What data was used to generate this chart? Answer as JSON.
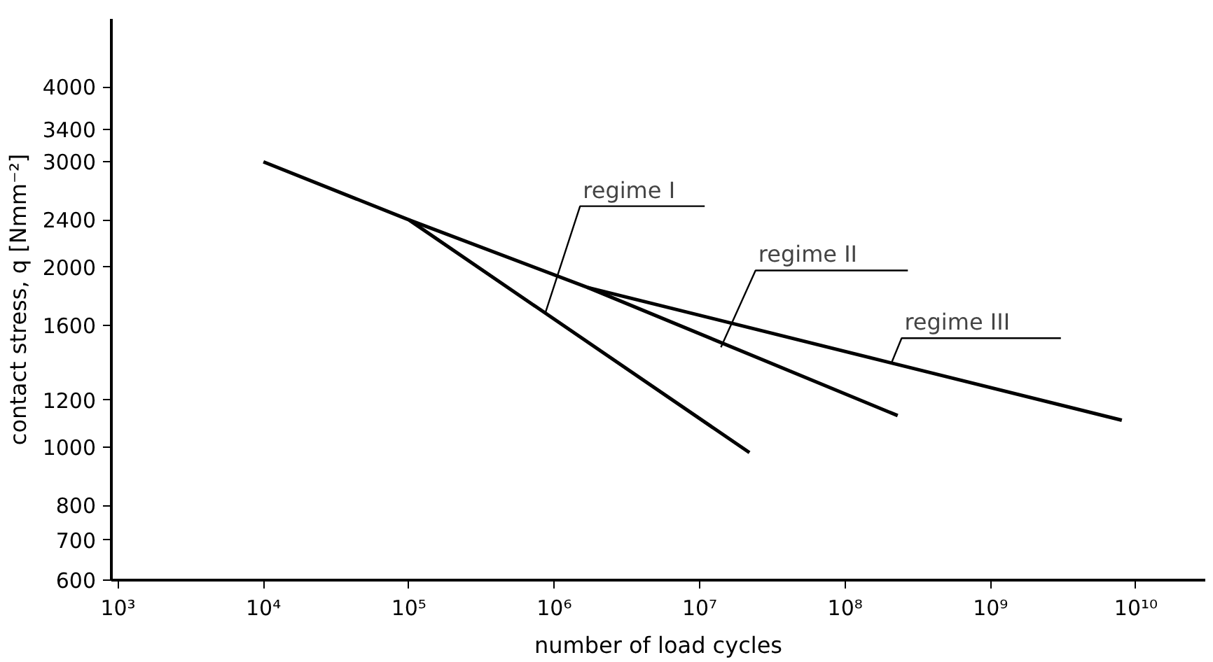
{
  "chart_data": {
    "type": "line",
    "xlabel": "number of load cycles",
    "ylabel": "contact stress, q [Nmm⁻²]",
    "log": "xy",
    "grid": false,
    "marker": "none",
    "line_style": "solid",
    "xlim": [
      900,
      30000000000
    ],
    "ylim": [
      600,
      5200
    ],
    "xticks": [
      {
        "value": 1000,
        "label": "10³"
      },
      {
        "value": 10000,
        "label": "10⁴"
      },
      {
        "value": 100000,
        "label": "10⁵"
      },
      {
        "value": 1000000,
        "label": "10⁶"
      },
      {
        "value": 10000000,
        "label": "10⁷"
      },
      {
        "value": 100000000,
        "label": "10⁸"
      },
      {
        "value": 1000000000,
        "label": "10⁹"
      },
      {
        "value": 10000000000,
        "label": "10¹⁰"
      }
    ],
    "yticks": [
      600,
      700,
      800,
      1000,
      1200,
      1600,
      2000,
      2400,
      3000,
      3400,
      4000
    ],
    "series": [
      {
        "color": "#000000",
        "x": [
          10000,
          100000,
          22000000
        ],
        "values": [
          3000,
          2400,
          980
        ]
      },
      {
        "color": "#000000",
        "x": [
          100000,
          1700000,
          230000000
        ],
        "values": [
          2400,
          1850,
          1130
        ]
      },
      {
        "color": "#000000",
        "x": [
          1700000,
          8000000000
        ],
        "values": [
          1850,
          1110
        ]
      }
    ],
    "annotations": [
      {
        "text": "regime I",
        "x": 870000,
        "y": 1680
      },
      {
        "text": "regime II",
        "x": 14000000,
        "y": 1470
      },
      {
        "text": "regime III",
        "x": 210000000,
        "y": 1390
      }
    ]
  }
}
